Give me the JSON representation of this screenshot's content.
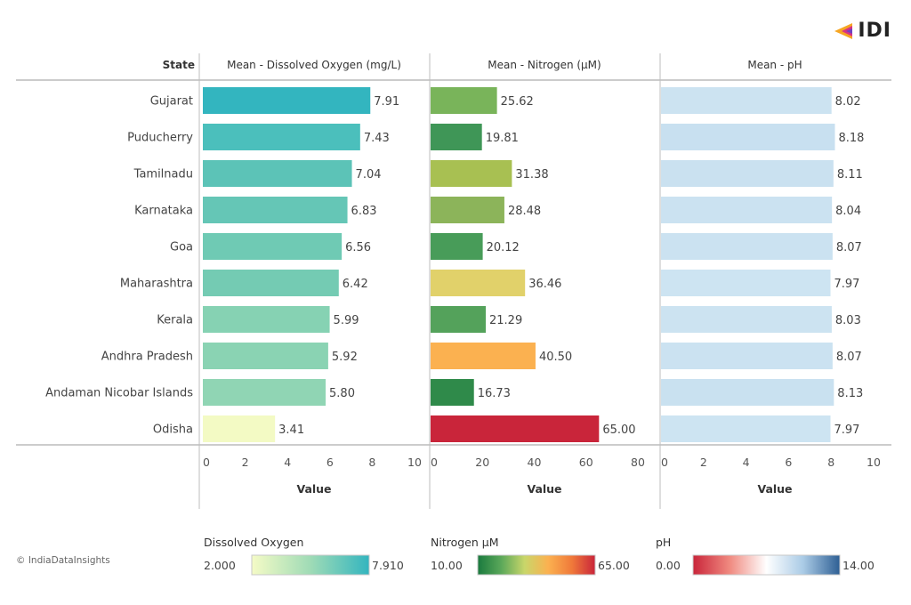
{
  "brand": {
    "text": "IDI"
  },
  "copyright": "© IndiaDataInsights",
  "chart_data": {
    "type": "bar",
    "row_header": "State",
    "categories": [
      "Gujarat",
      "Puducherry",
      "Tamilnadu",
      "Karnataka",
      "Goa",
      "Maharashtra",
      "Kerala",
      "Andhra Pradesh",
      "Andaman Nicobar Islands",
      "Odisha"
    ],
    "panels": [
      {
        "title": "Mean - Dissolved Oxygen (mg/L)",
        "xlabel": "Value",
        "xlim": [
          0,
          10
        ],
        "ticks": [
          0,
          2,
          4,
          6,
          8,
          10
        ],
        "values": [
          7.91,
          7.43,
          7.04,
          6.83,
          6.56,
          6.42,
          5.99,
          5.92,
          5.8,
          3.41
        ],
        "labels": [
          "7.91",
          "7.43",
          "7.04",
          "6.83",
          "6.56",
          "6.42",
          "5.99",
          "5.92",
          "5.80",
          "3.41"
        ],
        "colors": [
          "#33b5bf",
          "#4bbfbc",
          "#5cc3b7",
          "#65c6b6",
          "#6fcab4",
          "#74cbb3",
          "#86d2b3",
          "#8ad3b3",
          "#90d5b4",
          "#f3fac4"
        ]
      },
      {
        "title": "Mean - Nitrogen (µM)",
        "xlabel": "Value",
        "xlim": [
          0,
          80
        ],
        "ticks": [
          0,
          20,
          40,
          60,
          80
        ],
        "values": [
          25.62,
          19.81,
          31.38,
          28.48,
          20.12,
          36.46,
          21.29,
          40.5,
          16.73,
          65.0
        ],
        "labels": [
          "25.62",
          "19.81",
          "31.38",
          "28.48",
          "20.12",
          "36.46",
          "21.29",
          "40.50",
          "16.73",
          "65.00"
        ],
        "colors": [
          "#79b45a",
          "#3f9657",
          "#a8c052",
          "#8cb45a",
          "#489c59",
          "#e1d16a",
          "#54a25b",
          "#fbb150",
          "#2f8a4a",
          "#c9253a"
        ]
      },
      {
        "title": "Mean - pH",
        "xlabel": "Value",
        "xlim": [
          0,
          10
        ],
        "ticks": [
          0,
          2,
          4,
          6,
          8,
          10
        ],
        "values": [
          8.02,
          8.18,
          8.11,
          8.04,
          8.07,
          7.97,
          8.03,
          8.07,
          8.13,
          7.97
        ],
        "labels": [
          "8.02",
          "8.18",
          "8.11",
          "8.04",
          "8.07",
          "7.97",
          "8.03",
          "8.07",
          "8.13",
          "7.97"
        ],
        "colors": [
          "#cce3f1",
          "#c8e0f0",
          "#cae1f0",
          "#cbe2f1",
          "#cbe2f1",
          "#cde4f2",
          "#cce3f1",
          "#cbe2f1",
          "#c9e1f0",
          "#cde4f2"
        ]
      }
    ],
    "legends": [
      {
        "title": "Dissolved Oxygen",
        "min_label": "2.000",
        "max_label": "7.910",
        "gradient": [
          "#f5fbc6",
          "#9fdbb6",
          "#33b5bf"
        ]
      },
      {
        "title": "Nitrogen µM",
        "min_label": "10.00",
        "max_label": "65.00",
        "gradient": [
          "#1a7a3e",
          "#5ba85a",
          "#c9d66a",
          "#fbb150",
          "#f07a3a",
          "#c9253a"
        ]
      },
      {
        "title": "pH",
        "min_label": "0.00",
        "max_label": "14.00",
        "gradient": [
          "#c9253a",
          "#f08a80",
          "#ffffff",
          "#aacbe6",
          "#2e5f94"
        ]
      }
    ]
  }
}
